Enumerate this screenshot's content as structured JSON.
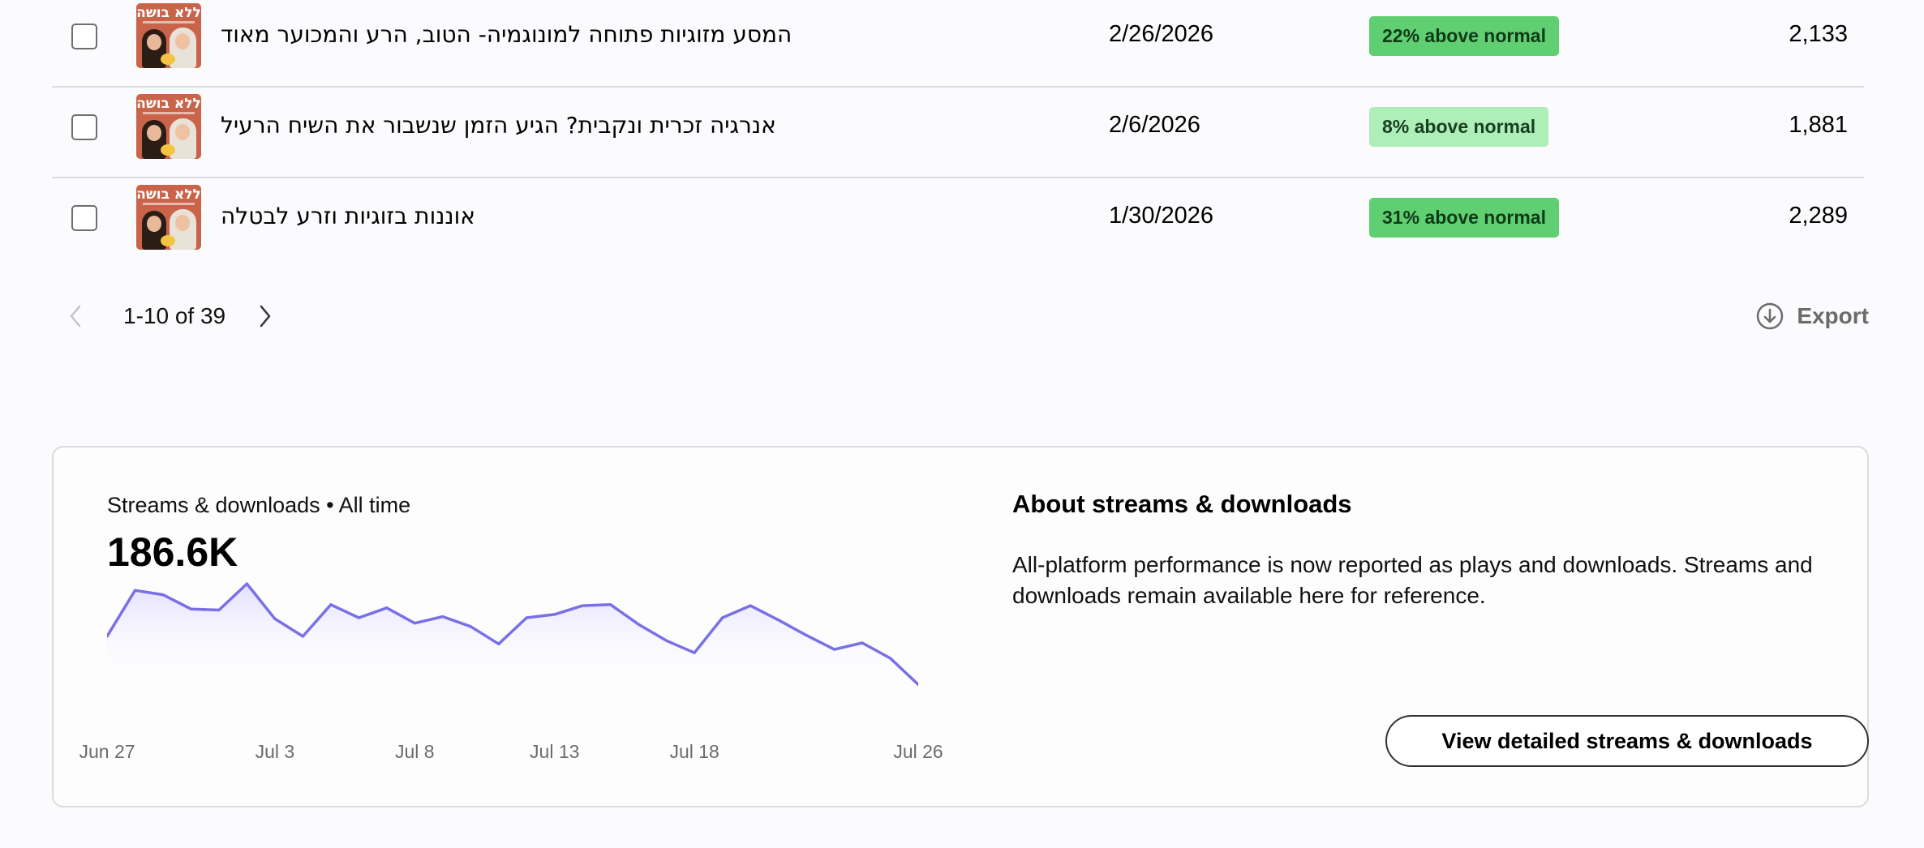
{
  "episodes": [
    {
      "title": "המסע מזוגיות פתוחה למונוגמיה- הטוב, הרע והמכוער מאוד",
      "date": "2/26/2026",
      "badge": "22% above normal",
      "badge_level": "strong",
      "plays": "2,133"
    },
    {
      "title": "אנרגיה זכרית ונקבית? הגיע הזמן שנשבור את השיח הרעיל",
      "date": "2/6/2026",
      "badge": "8% above normal",
      "badge_level": "light",
      "plays": "1,881"
    },
    {
      "title": "אוננות בזוגיות וזרע לבטלה",
      "date": "1/30/2026",
      "badge": "31% above normal",
      "badge_level": "strong",
      "plays": "2,289"
    }
  ],
  "cover_art_text": "ללא בושה",
  "pagination": {
    "range": "1-10 of 39"
  },
  "export_label": "Export",
  "streams_card": {
    "title": "Streams & downloads • All time",
    "total": "186.6K",
    "about_title": "About streams & downloads",
    "about_text": "All-platform performance is now reported as plays and downloads. Streams and downloads remain available here for reference.",
    "cta_label": "View detailed streams & downloads"
  },
  "colors": {
    "line": "#7a70e6",
    "fill_top": "#e0dcff",
    "badge_strong": "#5fcf72",
    "badge_light": "#aeeeb9"
  },
  "chart_data": {
    "type": "area",
    "x": [
      "Jun 27",
      "Jun 28",
      "Jun 29",
      "Jun 30",
      "Jul 1",
      "Jul 2",
      "Jul 3",
      "Jul 4",
      "Jul 5",
      "Jul 6",
      "Jul 7",
      "Jul 8",
      "Jul 9",
      "Jul 10",
      "Jul 11",
      "Jul 12",
      "Jul 13",
      "Jul 14",
      "Jul 15",
      "Jul 16",
      "Jul 17",
      "Jul 18",
      "Jul 19",
      "Jul 20",
      "Jul 21",
      "Jul 22",
      "Jul 23",
      "Jul 24",
      "Jul 25",
      "Jul 26"
    ],
    "values": [
      46,
      88,
      84,
      71,
      70,
      94,
      62,
      46,
      75,
      63,
      72,
      58,
      64,
      55,
      39,
      63,
      66,
      74,
      75,
      57,
      42,
      31,
      63,
      74,
      61,
      47,
      34,
      40,
      26,
      2
    ],
    "xtick_labels": [
      "Jun 27",
      "Jul 3",
      "Jul 8",
      "Jul 13",
      "Jul 18",
      "Jul 26"
    ],
    "xlabel": "",
    "ylabel": "",
    "grid": false,
    "legend": "none"
  }
}
